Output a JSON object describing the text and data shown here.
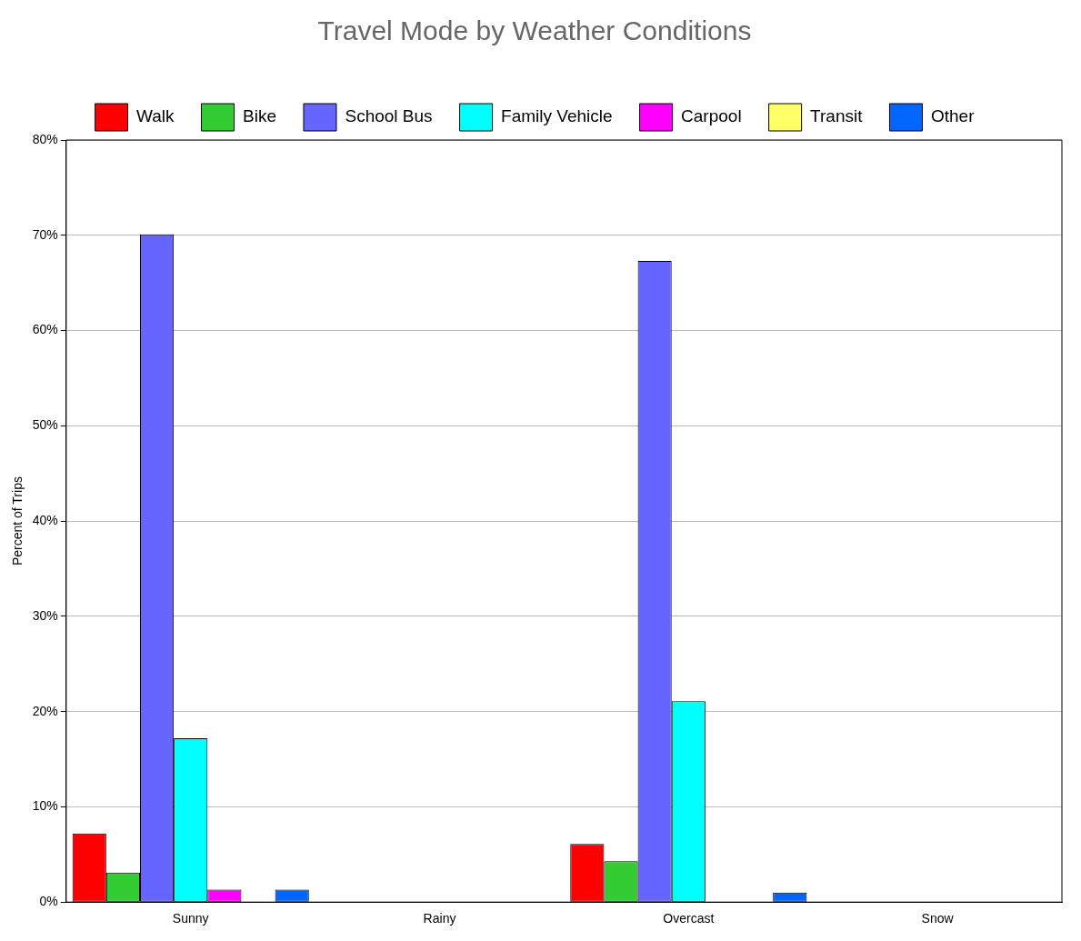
{
  "chart_data": {
    "type": "bar",
    "title": "Travel Mode by Weather Conditions",
    "ylabel": "Percent of Trips",
    "categories": [
      "Sunny",
      "Rainy",
      "Overcast",
      "Snow"
    ],
    "series": [
      {
        "name": "Walk",
        "color": "#ff0000",
        "values": [
          7.2,
          0,
          6.1,
          0
        ]
      },
      {
        "name": "Bike",
        "color": "#33cc33",
        "values": [
          3.1,
          0,
          4.3,
          0
        ]
      },
      {
        "name": "School Bus",
        "color": "#6666ff",
        "values": [
          70.1,
          0,
          67.3,
          0
        ]
      },
      {
        "name": "Family Vehicle",
        "color": "#00ffff",
        "values": [
          17.2,
          0,
          21.1,
          0
        ]
      },
      {
        "name": "Carpool",
        "color": "#ff00ff",
        "values": [
          1.3,
          0,
          0,
          0
        ]
      },
      {
        "name": "Transit",
        "color": "#ffff66",
        "values": [
          0,
          0,
          0,
          0
        ]
      },
      {
        "name": "Other",
        "color": "#0066ff",
        "values": [
          1.3,
          0,
          1.0,
          0
        ]
      }
    ],
    "ylim": [
      0,
      80
    ],
    "yticks": [
      {
        "value": 0,
        "label": "0%"
      },
      {
        "value": 10,
        "label": "10%"
      },
      {
        "value": 20,
        "label": "20%"
      },
      {
        "value": 30,
        "label": "30%"
      },
      {
        "value": 40,
        "label": "40%"
      },
      {
        "value": 50,
        "label": "50%"
      },
      {
        "value": 60,
        "label": "60%"
      },
      {
        "value": 70,
        "label": "70%"
      },
      {
        "value": 80,
        "label": "80%"
      }
    ],
    "grid": "y",
    "legend": "top"
  }
}
